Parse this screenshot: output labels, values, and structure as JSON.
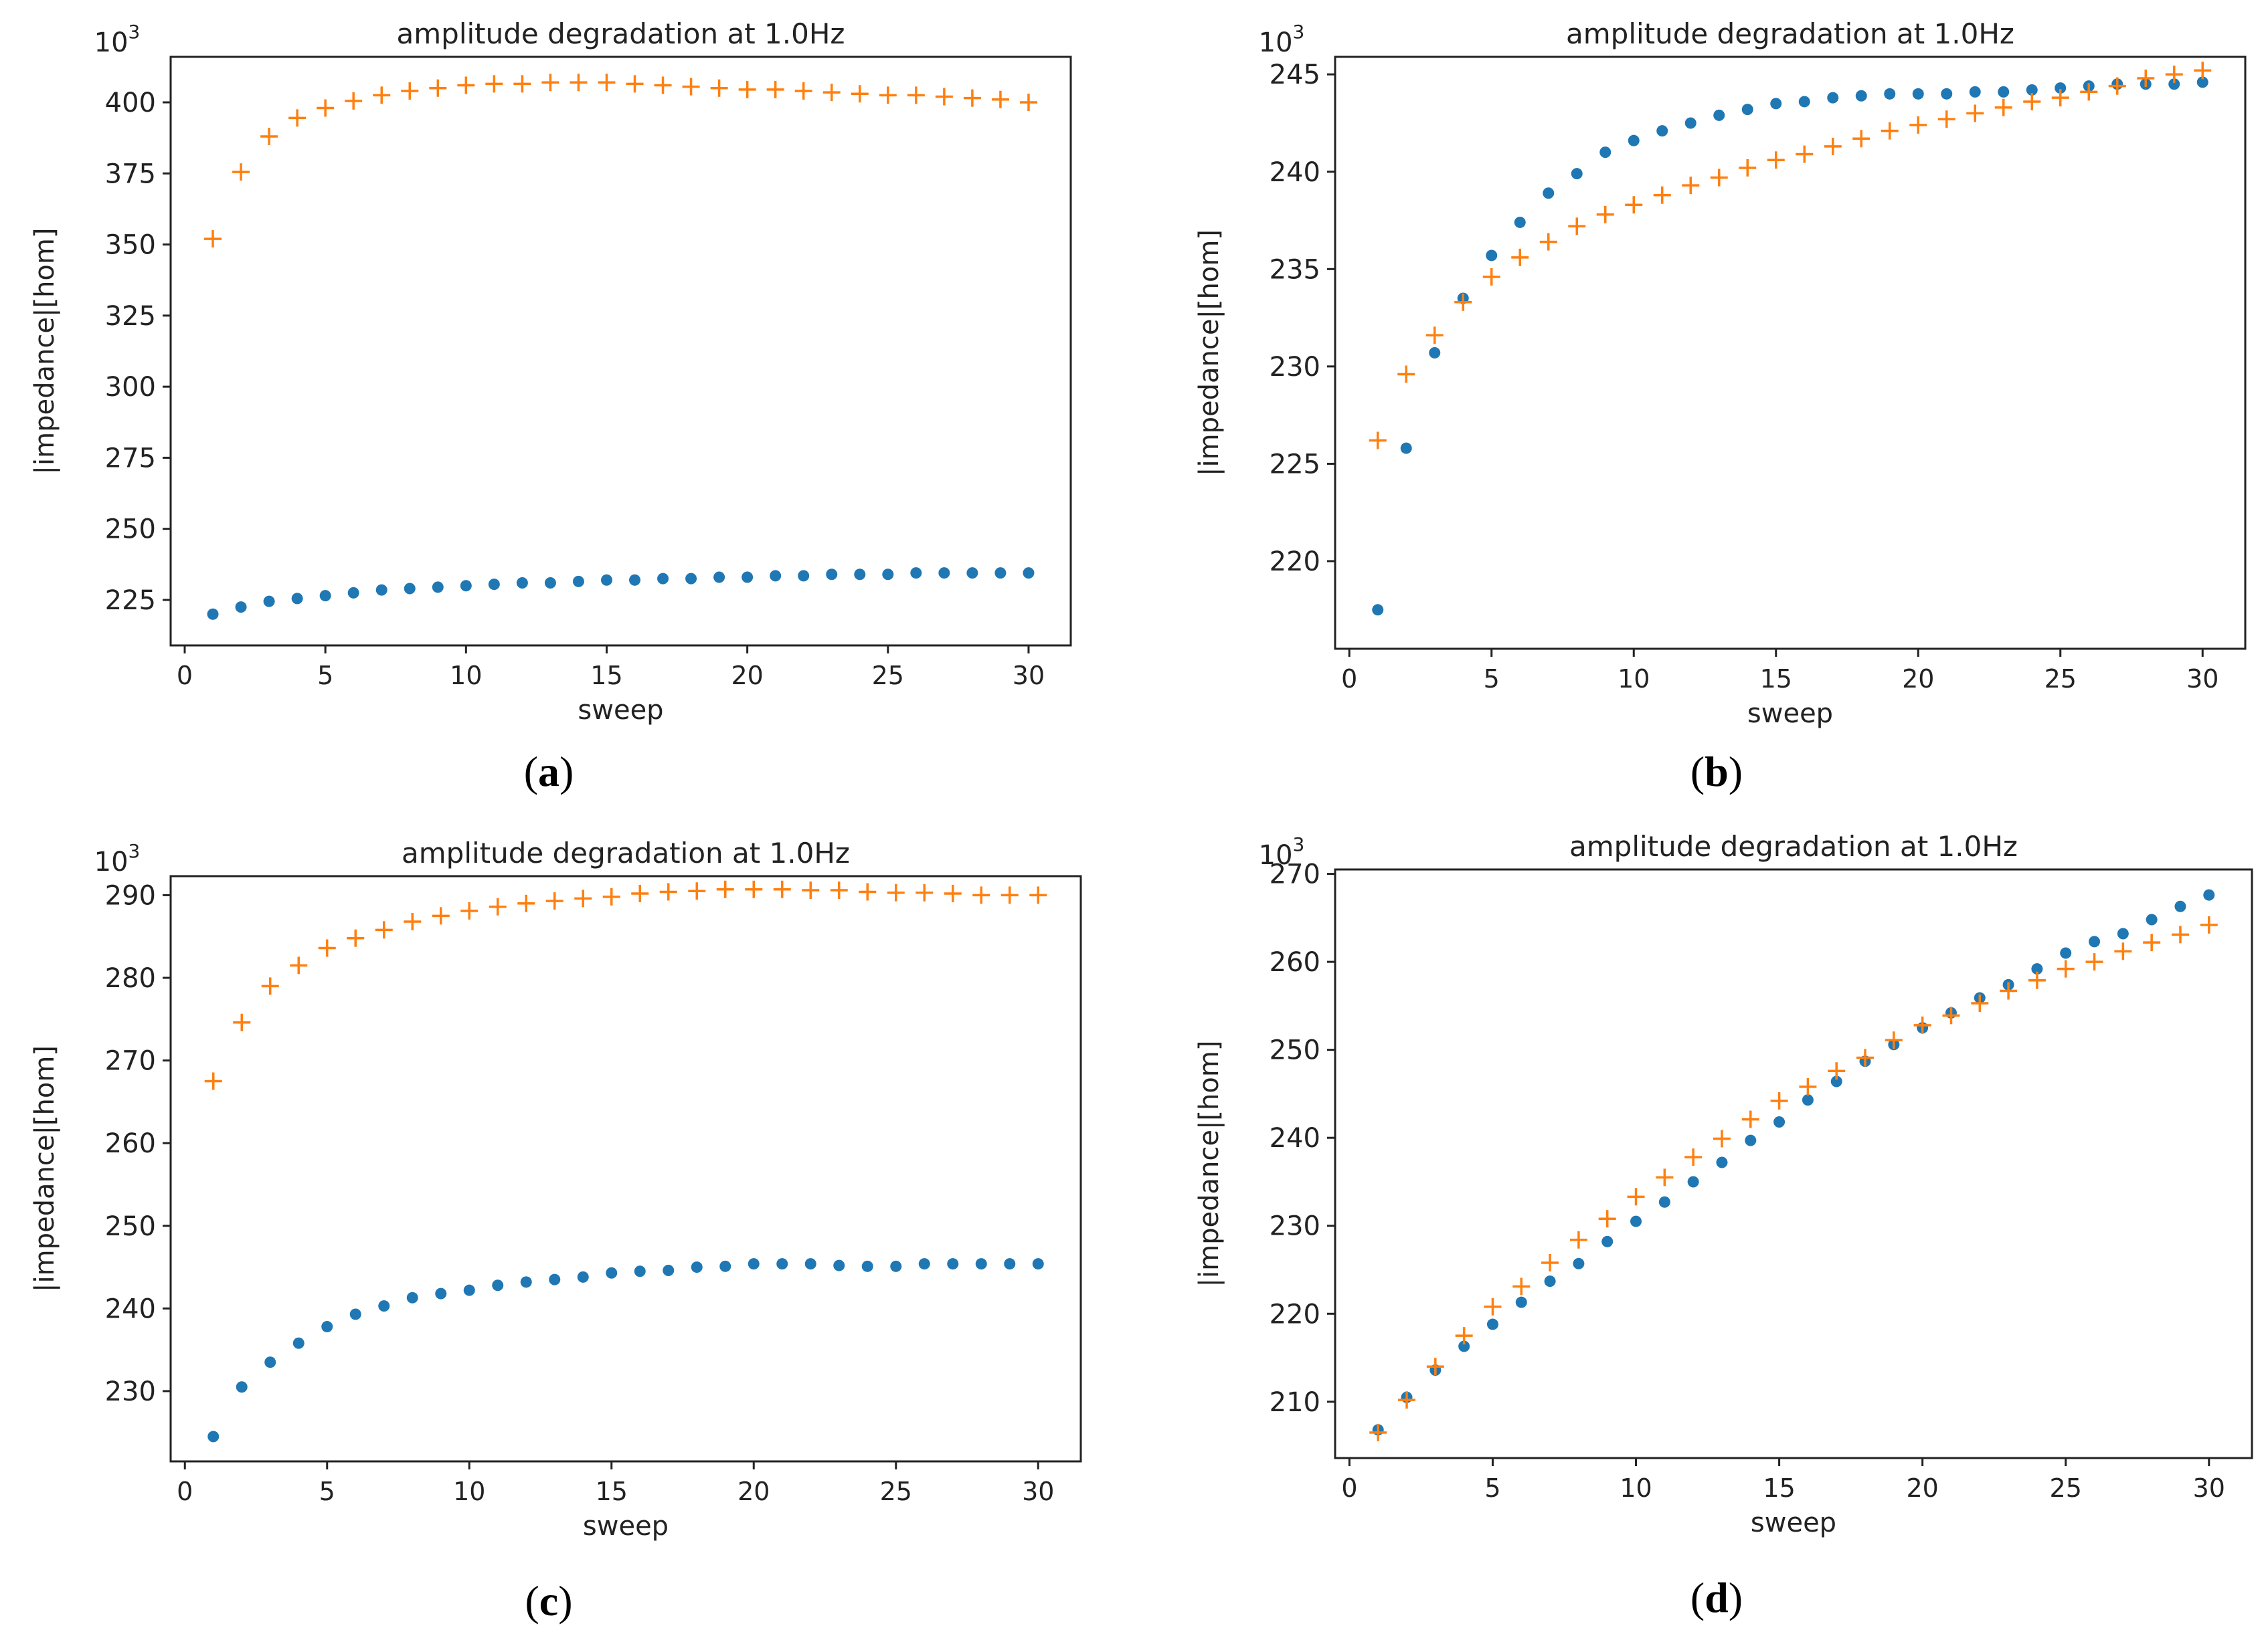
{
  "chart_data": [
    {
      "panel": "a",
      "type": "scatter",
      "title": "amplitude degradation at 1.0Hz",
      "xlabel": "sweep",
      "ylabel": "|impedance|[hom]",
      "y_multiplier": "10",
      "y_multiplier_exp": "3",
      "xlim": [
        -0.5,
        31.5
      ],
      "ylim": [
        209,
        416
      ],
      "xticks": [
        0,
        5,
        10,
        15,
        20,
        25,
        30
      ],
      "yticks": [
        225,
        250,
        275,
        300,
        325,
        350,
        375,
        400
      ],
      "grid": false,
      "legend": "none",
      "series": [
        {
          "marker": "dot",
          "color": "#1f77b4",
          "x": [
            1,
            2,
            3,
            4,
            5,
            6,
            7,
            8,
            9,
            10,
            11,
            12,
            13,
            14,
            15,
            16,
            17,
            18,
            19,
            20,
            21,
            22,
            23,
            24,
            25,
            26,
            27,
            28,
            29,
            30
          ],
          "y": [
            220,
            222.5,
            224.5,
            225.5,
            226.5,
            227.5,
            228.5,
            229,
            229.5,
            230,
            230.5,
            231,
            231,
            231.5,
            232,
            232,
            232.5,
            232.5,
            233,
            233,
            233.5,
            233.5,
            234,
            234,
            234,
            234.5,
            234.5,
            234.5,
            234.5,
            234.5
          ]
        },
        {
          "marker": "plus",
          "color": "#ff7f0e",
          "x": [
            1,
            2,
            3,
            4,
            5,
            6,
            7,
            8,
            9,
            10,
            11,
            12,
            13,
            14,
            15,
            16,
            17,
            18,
            19,
            20,
            21,
            22,
            23,
            24,
            25,
            26,
            27,
            28,
            29,
            30
          ],
          "y": [
            352,
            375.5,
            388,
            394.5,
            398,
            400.5,
            402.5,
            404,
            405,
            406,
            406.5,
            406.5,
            407,
            407,
            407,
            406.5,
            406,
            405.5,
            405,
            404.5,
            404.5,
            404,
            403.5,
            403,
            402.5,
            402.5,
            402,
            401.5,
            401,
            400
          ]
        }
      ]
    },
    {
      "panel": "b",
      "type": "scatter",
      "title": "amplitude degradation at 1.0Hz",
      "xlabel": "sweep",
      "ylabel": "|impedance|[hom]",
      "y_multiplier": "10",
      "y_multiplier_exp": "3",
      "xlim": [
        -0.5,
        31.5
      ],
      "ylim": [
        215.5,
        245.9
      ],
      "xticks": [
        0,
        5,
        10,
        15,
        20,
        25,
        30
      ],
      "yticks": [
        220,
        225,
        230,
        235,
        240,
        245
      ],
      "grid": false,
      "legend": "none",
      "series": [
        {
          "marker": "dot",
          "color": "#1f77b4",
          "x": [
            1,
            2,
            3,
            4,
            5,
            6,
            7,
            8,
            9,
            10,
            11,
            12,
            13,
            14,
            15,
            16,
            17,
            18,
            19,
            20,
            21,
            22,
            23,
            24,
            25,
            26,
            27,
            28,
            29,
            30
          ],
          "y": [
            217.5,
            225.8,
            230.7,
            233.5,
            235.7,
            237.4,
            238.9,
            239.9,
            241,
            241.6,
            242.1,
            242.5,
            242.9,
            243.2,
            243.5,
            243.6,
            243.8,
            243.9,
            244,
            244,
            244,
            244.1,
            244.1,
            244.2,
            244.3,
            244.4,
            244.5,
            244.5,
            244.5,
            244.6
          ]
        },
        {
          "marker": "plus",
          "color": "#ff7f0e",
          "x": [
            1,
            2,
            3,
            4,
            5,
            6,
            7,
            8,
            9,
            10,
            11,
            12,
            13,
            14,
            15,
            16,
            17,
            18,
            19,
            20,
            21,
            22,
            23,
            24,
            25,
            26,
            27,
            28,
            29,
            30
          ],
          "y": [
            226.2,
            229.6,
            231.6,
            233.3,
            234.6,
            235.6,
            236.4,
            237.2,
            237.8,
            238.3,
            238.8,
            239.3,
            239.7,
            240.2,
            240.6,
            240.9,
            241.3,
            241.7,
            242.1,
            242.4,
            242.7,
            243,
            243.3,
            243.6,
            243.8,
            244.1,
            244.4,
            244.8,
            245,
            245.2
          ]
        }
      ]
    },
    {
      "panel": "c",
      "type": "scatter",
      "title": "amplitude degradation at 1.0Hz",
      "xlabel": "sweep",
      "ylabel": "|impedance|[hom]",
      "y_multiplier": "10",
      "y_multiplier_exp": "3",
      "xlim": [
        -0.5,
        31.5
      ],
      "ylim": [
        221.5,
        292.3
      ],
      "xticks": [
        0,
        5,
        10,
        15,
        20,
        25,
        30
      ],
      "yticks": [
        230,
        240,
        250,
        260,
        270,
        280,
        290
      ],
      "grid": false,
      "legend": "none",
      "series": [
        {
          "marker": "dot",
          "color": "#1f77b4",
          "x": [
            1,
            2,
            3,
            4,
            5,
            6,
            7,
            8,
            9,
            10,
            11,
            12,
            13,
            14,
            15,
            16,
            17,
            18,
            19,
            20,
            21,
            22,
            23,
            24,
            25,
            26,
            27,
            28,
            29,
            30
          ],
          "y": [
            224.5,
            230.5,
            233.5,
            235.8,
            237.8,
            239.3,
            240.3,
            241.3,
            241.8,
            242.2,
            242.8,
            243.2,
            243.5,
            243.8,
            244.3,
            244.5,
            244.6,
            245,
            245.1,
            245.4,
            245.4,
            245.4,
            245.2,
            245.1,
            245.1,
            245.4,
            245.4,
            245.4,
            245.4,
            245.4
          ]
        },
        {
          "marker": "plus",
          "color": "#ff7f0e",
          "x": [
            1,
            2,
            3,
            4,
            5,
            6,
            7,
            8,
            9,
            10,
            11,
            12,
            13,
            14,
            15,
            16,
            17,
            18,
            19,
            20,
            21,
            22,
            23,
            24,
            25,
            26,
            27,
            28,
            29,
            30
          ],
          "y": [
            267.5,
            274.6,
            279,
            281.5,
            283.6,
            284.8,
            285.8,
            286.8,
            287.5,
            288.1,
            288.6,
            289,
            289.3,
            289.6,
            289.8,
            290.2,
            290.4,
            290.5,
            290.7,
            290.7,
            290.7,
            290.6,
            290.6,
            290.4,
            290.3,
            290.3,
            290.2,
            290,
            290,
            290
          ]
        }
      ]
    },
    {
      "panel": "d",
      "type": "scatter",
      "title": "amplitude degradation at 1.0Hz",
      "xlabel": "sweep",
      "ylabel": "|impedance|[hom]",
      "y_multiplier": "10",
      "y_multiplier_exp": "3",
      "xlim": [
        -0.5,
        31.5
      ],
      "ylim": [
        203.6,
        270.5
      ],
      "xticks": [
        0,
        5,
        10,
        15,
        20,
        25,
        30
      ],
      "yticks": [
        210,
        220,
        230,
        240,
        250,
        260,
        270
      ],
      "grid": false,
      "legend": "none",
      "series": [
        {
          "marker": "dot",
          "color": "#1f77b4",
          "x": [
            1,
            2,
            3,
            4,
            5,
            6,
            7,
            8,
            9,
            10,
            11,
            12,
            13,
            14,
            15,
            16,
            17,
            18,
            19,
            20,
            21,
            22,
            23,
            24,
            25,
            26,
            27,
            28,
            29,
            30
          ],
          "y": [
            206.8,
            210.5,
            213.6,
            216.3,
            218.8,
            221.3,
            223.7,
            225.7,
            228.2,
            230.5,
            232.7,
            235,
            237.2,
            239.7,
            241.8,
            244.3,
            246.4,
            248.7,
            250.6,
            252.5,
            254.2,
            255.9,
            257.4,
            259.2,
            261,
            262.3,
            263.2,
            264.8,
            266.3,
            267.6
          ]
        },
        {
          "marker": "plus",
          "color": "#ff7f0e",
          "x": [
            1,
            2,
            3,
            4,
            5,
            6,
            7,
            8,
            9,
            10,
            11,
            12,
            13,
            14,
            15,
            16,
            17,
            18,
            19,
            20,
            21,
            22,
            23,
            24,
            25,
            26,
            27,
            28,
            29,
            30
          ],
          "y": [
            206.5,
            210.2,
            214,
            217.5,
            220.8,
            223.1,
            225.8,
            228.4,
            230.8,
            233.3,
            235.5,
            237.8,
            239.9,
            242.1,
            244.2,
            245.8,
            247.6,
            249.1,
            251.1,
            252.8,
            253.9,
            255.3,
            256.7,
            257.9,
            259.2,
            260,
            261.2,
            262.2,
            263.1,
            264.2
          ]
        }
      ]
    }
  ],
  "panel_labels": [
    "a",
    "b",
    "c",
    "d"
  ]
}
